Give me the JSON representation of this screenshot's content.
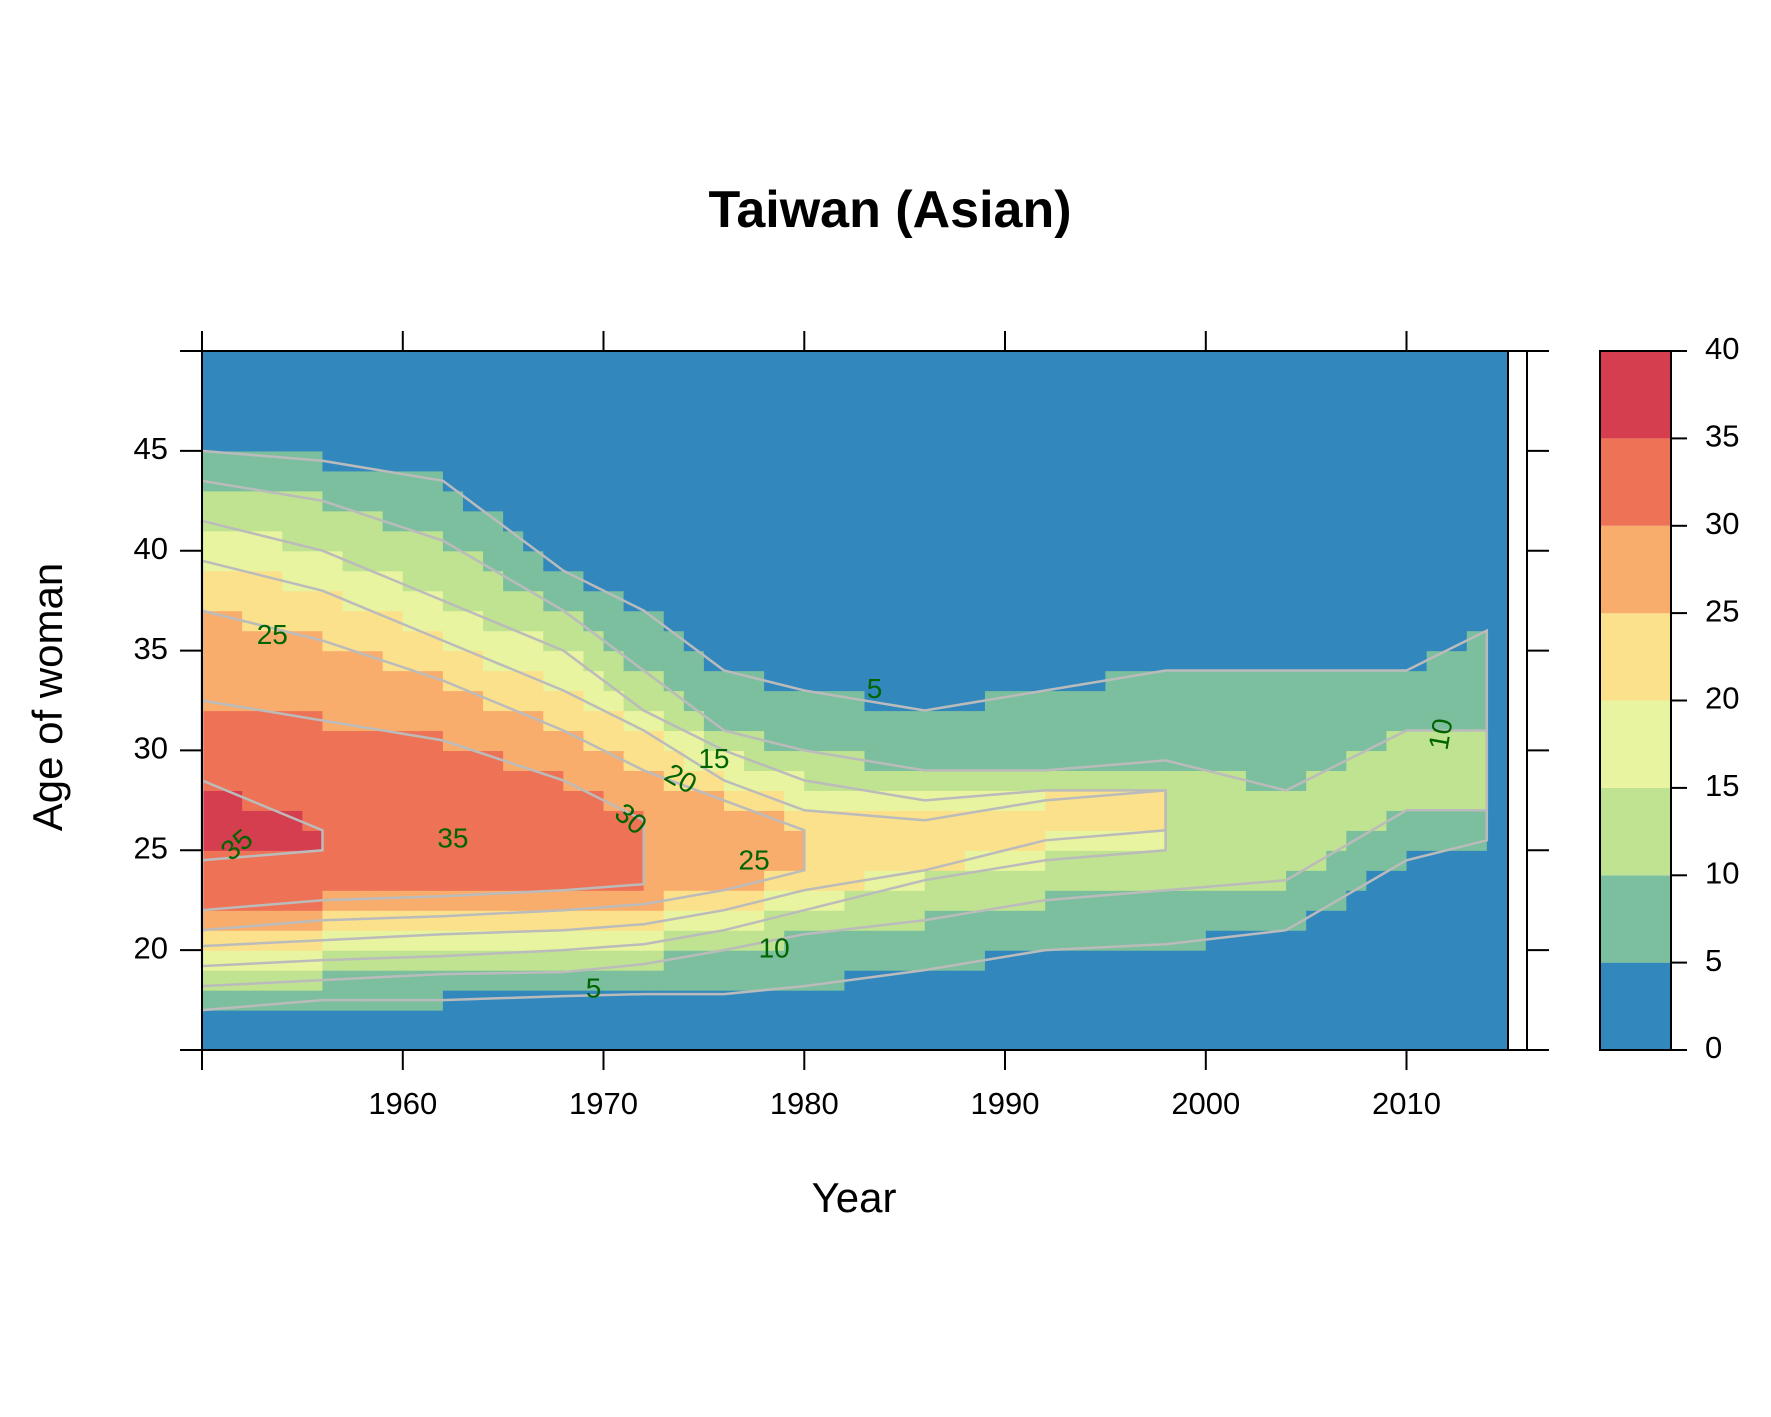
{
  "chart_data": {
    "type": "heatmap",
    "title": "Taiwan (Asian)",
    "xlabel": "Year",
    "ylabel": "Age of woman",
    "xlim": [
      1950,
      2016
    ],
    "ylim": [
      15,
      50
    ],
    "x_ticks": [
      1960,
      1970,
      1980,
      1990,
      2000,
      2010
    ],
    "y_ticks": [
      20,
      25,
      30,
      35,
      40,
      45
    ],
    "colorbar": {
      "range": [
        0,
        40
      ],
      "ticks": [
        0,
        5,
        10,
        15,
        20,
        25,
        30,
        35,
        40
      ],
      "colors": [
        "#3288bd",
        "#7bbf9e",
        "#bfe390",
        "#e9f4a0",
        "#fbe18c",
        "#f9ad6d",
        "#ee7356",
        "#d53e4f"
      ]
    },
    "grid": false,
    "data_range_years": [
      1950,
      2014
    ],
    "level_bounds": {
      "years": [
        1950,
        1956,
        1962,
        1968,
        1972,
        1976,
        1980,
        1986,
        1992,
        1998,
        2004,
        2010,
        2014
      ],
      "bounds": {
        "5": [
          [
            17,
            45
          ],
          [
            17.5,
            44.5
          ],
          [
            17.5,
            43.5
          ],
          [
            17.7,
            39
          ],
          [
            17.8,
            37
          ],
          [
            17.8,
            34
          ],
          [
            18.2,
            33
          ],
          [
            19,
            32
          ],
          [
            20,
            33
          ],
          [
            20.3,
            34
          ],
          [
            21,
            34
          ],
          [
            24.5,
            34
          ],
          [
            25.5,
            36
          ]
        ],
        "10": [
          [
            18.2,
            43.5
          ],
          [
            18.5,
            42.5
          ],
          [
            18.8,
            40.5
          ],
          [
            18.9,
            37
          ],
          [
            19.3,
            34
          ],
          [
            20,
            31
          ],
          [
            20.8,
            30
          ],
          [
            21.5,
            29
          ],
          [
            22.5,
            29
          ],
          [
            23,
            29.5
          ],
          [
            23.5,
            28
          ],
          [
            27,
            31
          ],
          [
            27,
            31
          ]
        ],
        "15": [
          [
            19.2,
            41.5
          ],
          [
            19.5,
            40
          ],
          [
            19.7,
            37.5
          ],
          [
            20,
            35
          ],
          [
            20.3,
            32
          ],
          [
            21,
            30
          ],
          [
            22,
            28.5
          ],
          [
            23.5,
            27.5
          ],
          [
            24.5,
            28
          ],
          [
            25,
            28
          ]
        ],
        "20": [
          [
            20.2,
            39.5
          ],
          [
            20.5,
            38
          ],
          [
            20.8,
            35.5
          ],
          [
            21,
            33
          ],
          [
            21.3,
            31
          ],
          [
            22,
            28.5
          ],
          [
            23,
            27
          ],
          [
            24,
            26.5
          ],
          [
            25.5,
            27.5
          ],
          [
            26,
            28
          ]
        ],
        "25": [
          [
            21,
            37
          ],
          [
            21.5,
            35.5
          ],
          [
            21.7,
            33.5
          ],
          [
            22,
            31
          ],
          [
            22.3,
            29
          ],
          [
            23,
            27.5
          ],
          [
            24,
            26
          ]
        ],
        "30": [
          [
            22,
            32.5
          ],
          [
            22.5,
            31.5
          ],
          [
            22.7,
            30.5
          ],
          [
            23,
            28.5
          ],
          [
            23.3,
            26.5
          ]
        ],
        "35": [
          [
            24.5,
            28.5
          ],
          [
            25,
            26
          ]
        ]
      }
    },
    "contour_labels": [
      {
        "text": "25",
        "x": 1953.5,
        "y": 35.7,
        "angle": 0
      },
      {
        "text": "35",
        "x": 1951.8,
        "y": 25.2,
        "angle": -40
      },
      {
        "text": "35",
        "x": 1962.5,
        "y": 25.5,
        "angle": 0
      },
      {
        "text": "30",
        "x": 1971.3,
        "y": 26.5,
        "angle": 40
      },
      {
        "text": "20",
        "x": 1973.8,
        "y": 28.5,
        "angle": 30
      },
      {
        "text": "15",
        "x": 1975.5,
        "y": 29.5,
        "angle": 0
      },
      {
        "text": "25",
        "x": 1977.5,
        "y": 24.4,
        "angle": 0
      },
      {
        "text": "10",
        "x": 1978.5,
        "y": 20,
        "angle": 0
      },
      {
        "text": "5",
        "x": 1969.5,
        "y": 18,
        "angle": 0
      },
      {
        "text": "5",
        "x": 1983.5,
        "y": 33,
        "angle": 0
      },
      {
        "text": "10",
        "x": 2011.8,
        "y": 30.8,
        "angle": -80
      }
    ]
  }
}
